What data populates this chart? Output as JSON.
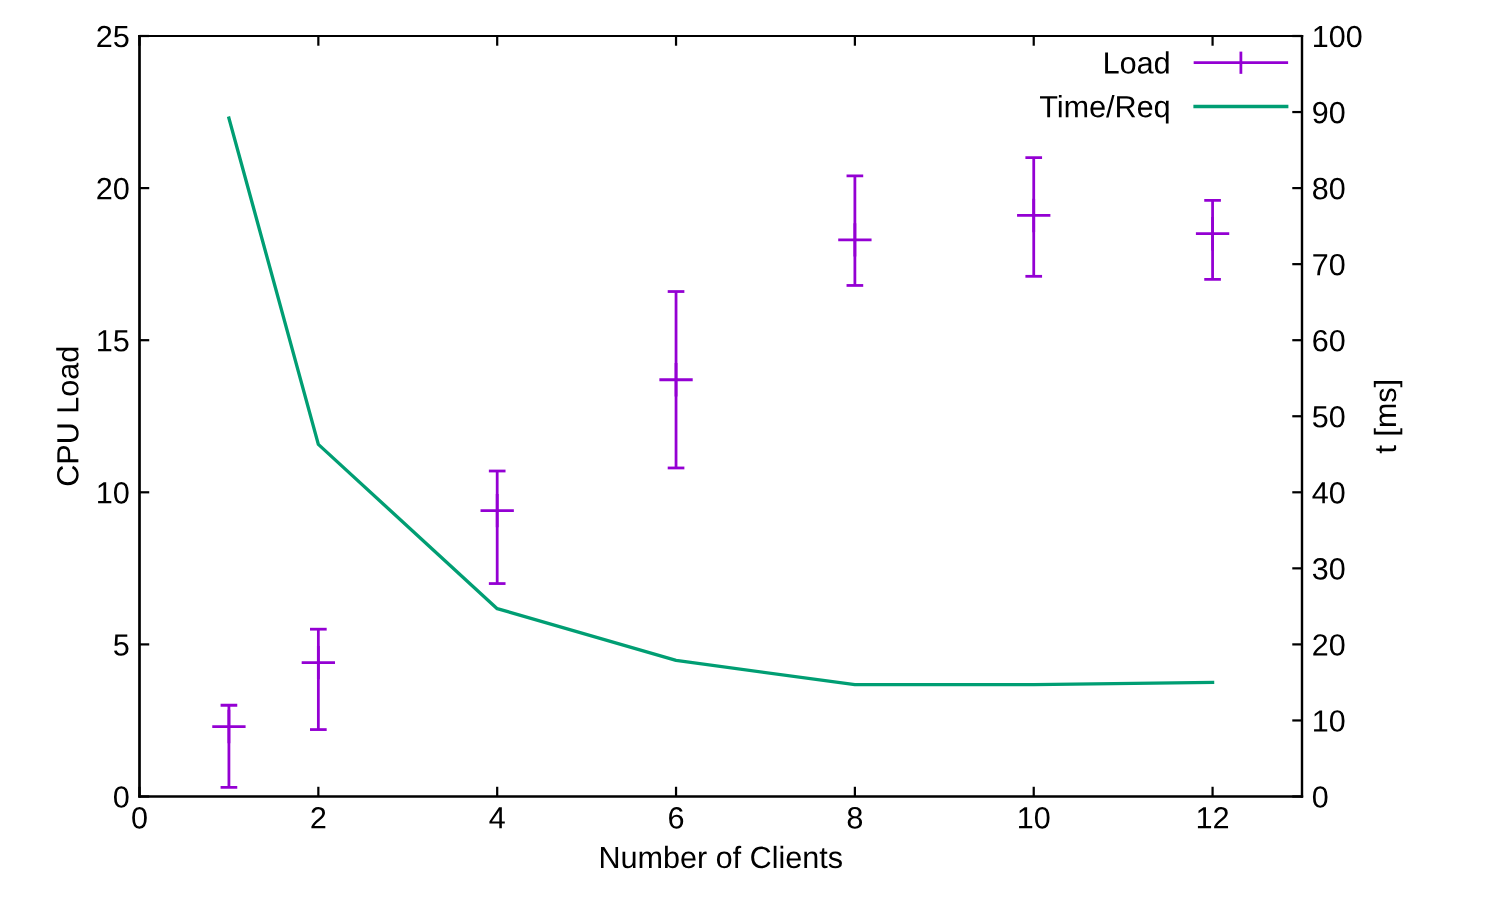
{
  "chart_data": {
    "type": "scatter",
    "xlabel": "Number of Clients",
    "ylabel": "CPU Load",
    "y2label": "t [ms]",
    "xlim": [
      0,
      13
    ],
    "xticks": [
      0,
      2,
      4,
      6,
      8,
      10,
      12
    ],
    "ylim": [
      0,
      25
    ],
    "yticks": [
      0,
      5,
      10,
      15,
      20,
      25
    ],
    "y2lim": [
      0,
      100
    ],
    "y2ticks": [
      0,
      10,
      20,
      30,
      40,
      50,
      60,
      70,
      80,
      90,
      100
    ],
    "grid": false,
    "legend": "top right",
    "series": [
      {
        "name": "Load",
        "marker": "cross",
        "color": "#9400d3",
        "x": [
          1,
          2,
          4,
          6,
          8,
          10,
          12
        ],
        "values": [
          2.3,
          4.4,
          9.4,
          13.7,
          18.3,
          19.1,
          18.5
        ],
        "errors": [
          [
            0.3,
            3.0
          ],
          [
            2.2,
            5.5
          ],
          [
            7.0,
            10.7
          ],
          [
            10.8,
            16.6
          ],
          [
            16.8,
            20.4
          ],
          [
            17.1,
            21.0
          ],
          [
            17.0,
            19.6
          ]
        ]
      },
      {
        "name": "Time/Req",
        "type": "line",
        "axis": "y2",
        "color": "#009e73",
        "x": [
          1,
          2,
          4,
          6,
          8,
          10,
          12
        ],
        "values": [
          89.2,
          46.3,
          24.7,
          17.9,
          14.7,
          14.7,
          15.0
        ]
      }
    ]
  }
}
